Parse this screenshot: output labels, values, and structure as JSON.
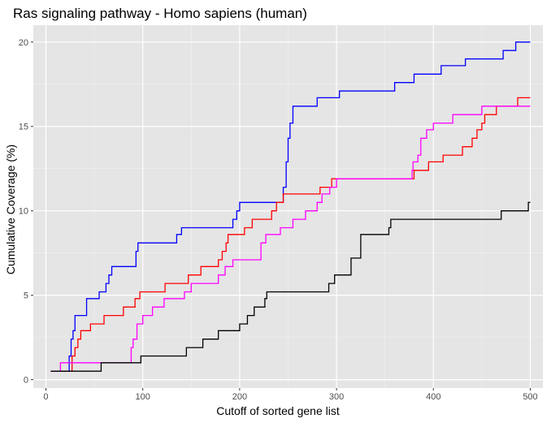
{
  "chart_data": {
    "type": "line",
    "title": "Ras signaling pathway - Homo sapiens (human)",
    "xlabel": "Cutoff of sorted gene list",
    "ylabel": "Cumulative Coverage (%)",
    "xlim": [
      -13,
      513
    ],
    "ylim": [
      -0.5,
      21.0
    ],
    "x_ticks": [
      0,
      100,
      200,
      300,
      400,
      500
    ],
    "y_ticks": [
      0,
      5,
      10,
      15,
      20
    ],
    "x_tick_labels": [
      "0",
      "100",
      "200",
      "300",
      "400",
      "500"
    ],
    "y_tick_labels": [
      "0",
      "5",
      "10",
      "15",
      "20"
    ],
    "grid": true,
    "background": "#e5e5e5",
    "series": [
      {
        "color": "#0000ff",
        "step": true,
        "points": [
          [
            5,
            0.5
          ],
          [
            20,
            0.5
          ],
          [
            24,
            1.4
          ],
          [
            26,
            2.4
          ],
          [
            28,
            2.9
          ],
          [
            30,
            3.8
          ],
          [
            42,
            4.8
          ],
          [
            55,
            5.2
          ],
          [
            62,
            5.7
          ],
          [
            65,
            6.2
          ],
          [
            68,
            6.7
          ],
          [
            93,
            7.6
          ],
          [
            95,
            8.1
          ],
          [
            135,
            8.6
          ],
          [
            140,
            9.0
          ],
          [
            193,
            9.5
          ],
          [
            197,
            10.0
          ],
          [
            200,
            10.5
          ],
          [
            242,
            10.5
          ],
          [
            245,
            11.4
          ],
          [
            248,
            12.9
          ],
          [
            250,
            14.3
          ],
          [
            252,
            15.2
          ],
          [
            255,
            16.2
          ],
          [
            280,
            16.7
          ],
          [
            303,
            17.1
          ],
          [
            360,
            17.6
          ],
          [
            380,
            18.1
          ],
          [
            408,
            18.6
          ],
          [
            433,
            19.0
          ],
          [
            472,
            19.5
          ],
          [
            485,
            20.0
          ],
          [
            500,
            20.0
          ]
        ]
      },
      {
        "color": "#ff0000",
        "step": true,
        "points": [
          [
            5,
            0.5
          ],
          [
            23,
            0.5
          ],
          [
            27,
            1.4
          ],
          [
            30,
            1.9
          ],
          [
            33,
            2.4
          ],
          [
            36,
            2.9
          ],
          [
            46,
            3.3
          ],
          [
            60,
            3.8
          ],
          [
            80,
            4.3
          ],
          [
            92,
            4.8
          ],
          [
            97,
            5.2
          ],
          [
            123,
            5.7
          ],
          [
            147,
            6.2
          ],
          [
            160,
            6.7
          ],
          [
            178,
            7.1
          ],
          [
            182,
            7.6
          ],
          [
            186,
            8.1
          ],
          [
            188,
            8.6
          ],
          [
            205,
            9.0
          ],
          [
            213,
            9.5
          ],
          [
            233,
            10.0
          ],
          [
            238,
            10.5
          ],
          [
            245,
            11.0
          ],
          [
            283,
            11.4
          ],
          [
            295,
            11.9
          ],
          [
            370,
            11.9
          ],
          [
            380,
            12.4
          ],
          [
            395,
            12.9
          ],
          [
            410,
            13.3
          ],
          [
            430,
            13.8
          ],
          [
            440,
            14.3
          ],
          [
            445,
            14.8
          ],
          [
            450,
            15.2
          ],
          [
            453,
            15.7
          ],
          [
            465,
            16.2
          ],
          [
            487,
            16.7
          ],
          [
            500,
            16.7
          ]
        ]
      },
      {
        "color": "#ff00ff",
        "step": true,
        "points": [
          [
            5,
            0.5
          ],
          [
            15,
            1.0
          ],
          [
            85,
            1.0
          ],
          [
            88,
            1.9
          ],
          [
            90,
            2.4
          ],
          [
            94,
            3.3
          ],
          [
            100,
            3.8
          ],
          [
            110,
            4.3
          ],
          [
            122,
            4.8
          ],
          [
            143,
            5.2
          ],
          [
            150,
            5.7
          ],
          [
            178,
            6.2
          ],
          [
            185,
            6.7
          ],
          [
            193,
            7.1
          ],
          [
            222,
            8.1
          ],
          [
            227,
            8.6
          ],
          [
            242,
            9.0
          ],
          [
            255,
            9.5
          ],
          [
            268,
            10.0
          ],
          [
            280,
            10.5
          ],
          [
            285,
            11.0
          ],
          [
            293,
            11.4
          ],
          [
            300,
            11.9
          ],
          [
            375,
            11.9
          ],
          [
            378,
            12.4
          ],
          [
            379,
            12.9
          ],
          [
            384,
            13.3
          ],
          [
            387,
            14.3
          ],
          [
            393,
            14.8
          ],
          [
            400,
            15.2
          ],
          [
            420,
            15.7
          ],
          [
            450,
            16.2
          ],
          [
            500,
            16.2
          ]
        ]
      },
      {
        "color": "#000000",
        "step": true,
        "points": [
          [
            5,
            0.5
          ],
          [
            55,
            0.5
          ],
          [
            57,
            1.0
          ],
          [
            98,
            1.4
          ],
          [
            145,
            1.9
          ],
          [
            162,
            2.4
          ],
          [
            178,
            2.9
          ],
          [
            200,
            3.3
          ],
          [
            208,
            3.8
          ],
          [
            215,
            4.3
          ],
          [
            226,
            4.8
          ],
          [
            228,
            5.2
          ],
          [
            292,
            5.7
          ],
          [
            298,
            6.2
          ],
          [
            315,
            7.2
          ],
          [
            325,
            8.6
          ],
          [
            354,
            9.0
          ],
          [
            356,
            9.5
          ],
          [
            470,
            10.0
          ],
          [
            498,
            10.5
          ],
          [
            500,
            10.5
          ]
        ]
      }
    ]
  }
}
